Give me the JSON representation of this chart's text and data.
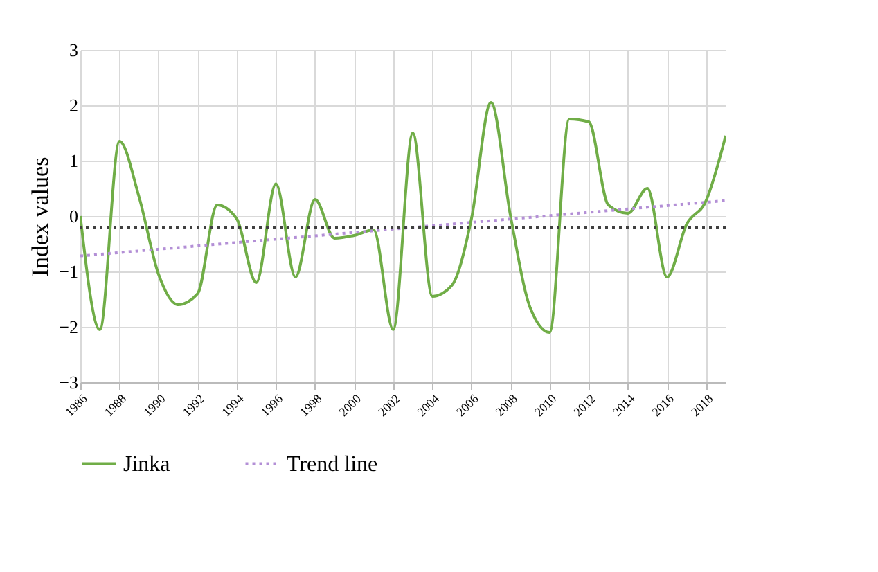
{
  "chart_data": {
    "type": "line",
    "ylabel": "Index values",
    "x": [
      1986,
      1987,
      1988,
      1989,
      1990,
      1991,
      1992,
      1993,
      1994,
      1995,
      1996,
      1997,
      1998,
      1999,
      2000,
      2001,
      2002,
      2003,
      2004,
      2005,
      2006,
      2007,
      2008,
      2009,
      2010,
      2011,
      2012,
      2013,
      2014,
      2015,
      2016,
      2017,
      2018,
      2019
    ],
    "series": [
      {
        "name": "Jinka",
        "color": "#70ad47",
        "line_style": "solid",
        "values": [
          0.0,
          -2.05,
          1.35,
          0.35,
          -1.05,
          -1.6,
          -1.4,
          0.2,
          -0.05,
          -1.2,
          0.58,
          -1.1,
          0.3,
          -0.4,
          -0.35,
          -0.25,
          -2.05,
          1.5,
          -1.45,
          -1.25,
          -0.05,
          2.05,
          0.0,
          -1.65,
          -2.1,
          1.75,
          1.7,
          0.2,
          0.05,
          0.5,
          -1.1,
          -0.15,
          0.28,
          1.45
        ]
      },
      {
        "name": "Trend line",
        "color": "#b38fd6",
        "line_style": "dotted",
        "x": [
          1986,
          2019
        ],
        "values": [
          -0.72,
          0.28
        ]
      }
    ],
    "ref_lines": [
      {
        "axis": "y",
        "value": -0.2,
        "color": "#404040",
        "line_style": "dotted"
      }
    ],
    "xlim": [
      1986,
      2019
    ],
    "xticks": [
      1986,
      1988,
      1990,
      1992,
      1994,
      1996,
      1998,
      2000,
      2002,
      2004,
      2006,
      2008,
      2010,
      2012,
      2014,
      2016,
      2018
    ],
    "ylim": [
      -3,
      3
    ],
    "yticks": [
      -3,
      -2,
      -1,
      0,
      1,
      2,
      3
    ],
    "grid": true,
    "legend": "bottom"
  }
}
